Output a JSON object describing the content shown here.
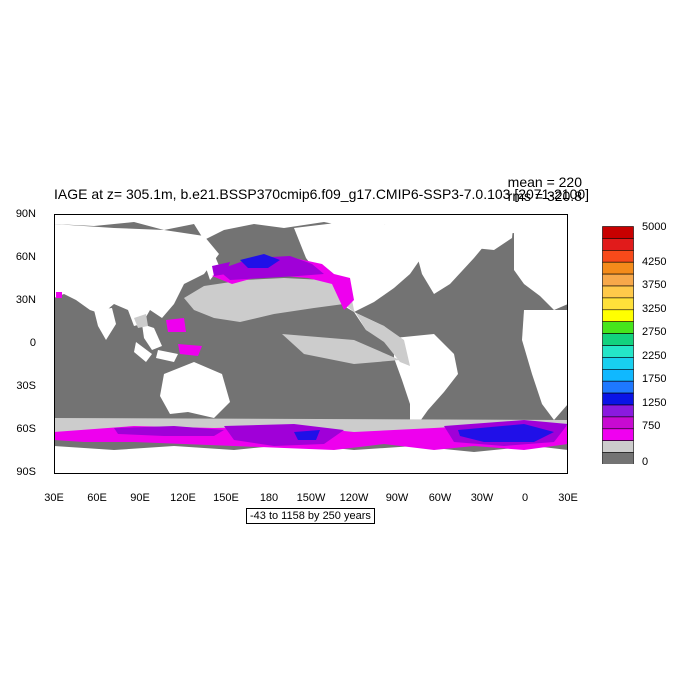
{
  "title": "IAGE at z= 305.1m, b.e21.BSSP370cmip6.f09_g17.CMIP6-SSP3-7.0.103 [2071-2100]",
  "stats": {
    "mean": "mean = 220",
    "rms": "rms = 320.8"
  },
  "range_note": "-43 to 1158 by 250 years",
  "lat_labels": [
    "90N",
    "60N",
    "30N",
    "0",
    "30S",
    "60S",
    "90S"
  ],
  "lon_labels": [
    "30E",
    "60E",
    "90E",
    "120E",
    "150E",
    "180",
    "150W",
    "120W",
    "90W",
    "60W",
    "30W",
    "0",
    "30E"
  ],
  "colorbar": {
    "labels": [
      "5000",
      "4250",
      "3750",
      "3250",
      "2750",
      "2250",
      "1750",
      "1250",
      "750",
      "0"
    ],
    "colors": [
      "#c80000",
      "#e11b1b",
      "#f74a1a",
      "#f48b1a",
      "#f7a84a",
      "#ffc94a",
      "#ffe13a",
      "#ffff00",
      "#46e61c",
      "#12d27e",
      "#24e6c8",
      "#18d0f0",
      "#10b8ff",
      "#1e78ff",
      "#0a14e6",
      "#8a1adf",
      "#c80ad2",
      "#f000f0",
      "#cccccc",
      "#737373"
    ]
  },
  "palette": {
    "land": "#ffffff",
    "ocean_low": "#737373",
    "ocean_mid": "#cccccc",
    "magenta": "#ee00ee",
    "purple": "#a000d8",
    "deep": "#8a1adf",
    "blue": "#2010e8"
  }
}
